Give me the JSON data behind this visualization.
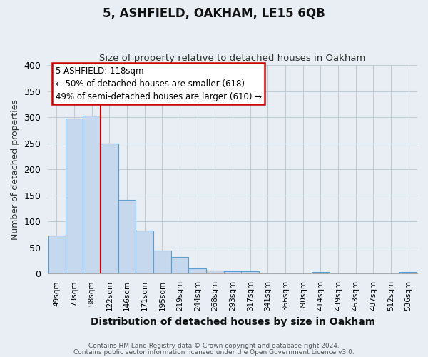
{
  "title": "5, ASHFIELD, OAKHAM, LE15 6QB",
  "subtitle": "Size of property relative to detached houses in Oakham",
  "xlabel": "Distribution of detached houses by size in Oakham",
  "ylabel": "Number of detached properties",
  "bar_labels": [
    "49sqm",
    "73sqm",
    "98sqm",
    "122sqm",
    "146sqm",
    "171sqm",
    "195sqm",
    "219sqm",
    "244sqm",
    "268sqm",
    "293sqm",
    "317sqm",
    "341sqm",
    "366sqm",
    "390sqm",
    "414sqm",
    "439sqm",
    "463sqm",
    "487sqm",
    "512sqm",
    "536sqm"
  ],
  "bar_values": [
    73,
    298,
    303,
    250,
    142,
    83,
    44,
    32,
    10,
    6,
    5,
    5,
    0,
    0,
    0,
    3,
    0,
    0,
    0,
    0,
    3
  ],
  "bar_color": "#c5d8ee",
  "bar_edge_color": "#5a9fd4",
  "vline_color": "#cc0000",
  "ylim": [
    0,
    400
  ],
  "yticks": [
    0,
    50,
    100,
    150,
    200,
    250,
    300,
    350,
    400
  ],
  "annotation_title": "5 ASHFIELD: 118sqm",
  "annotation_line1": "← 50% of detached houses are smaller (618)",
  "annotation_line2": "49% of semi-detached houses are larger (610) →",
  "annotation_box_color": "#ffffff",
  "annotation_box_edge": "#cc0000",
  "footer_line1": "Contains HM Land Registry data © Crown copyright and database right 2024.",
  "footer_line2": "Contains public sector information licensed under the Open Government Licence v3.0.",
  "figure_bg": "#e8eef4",
  "plot_bg": "#e8eef4",
  "grid_color": "#c0ccd8"
}
